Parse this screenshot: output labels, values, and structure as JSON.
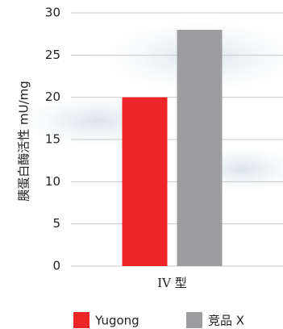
{
  "chart_data": {
    "type": "bar",
    "y_label": "胰蛋白酶活性 mU/mg",
    "categories": [
      "IV 型"
    ],
    "series": [
      {
        "name": "Yugong",
        "color": "#ee2527",
        "values": [
          20
        ]
      },
      {
        "name": "竞品 X",
        "color": "#9d9d9f",
        "values": [
          28
        ]
      }
    ],
    "ylim": [
      0,
      30
    ],
    "yticks": [
      0,
      5,
      10,
      15,
      20,
      25,
      30
    ],
    "grid": true,
    "legend": "bottom"
  }
}
